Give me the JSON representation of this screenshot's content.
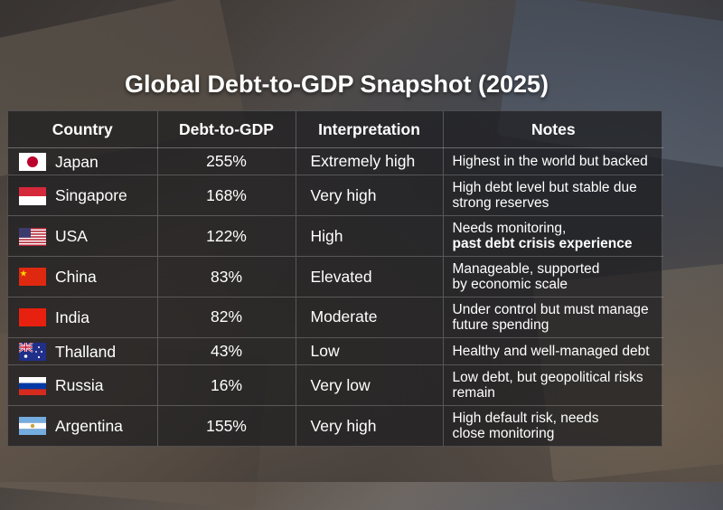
{
  "title": "Global Debt-to-GDP Snapshot (2025)",
  "table": {
    "headers": [
      "Country",
      "Debt-to-GDP",
      "Interpretation",
      "Notes"
    ],
    "rows": [
      {
        "country": "Japan",
        "flag": "japan-flag-icon",
        "debt": "255%",
        "interpretation": "Extremely high",
        "notes": [
          "Highest in the world but backed",
          ""
        ]
      },
      {
        "country": "Singapore",
        "flag": "singapore-flag-icon",
        "debt": "168%",
        "interpretation": "Very high",
        "notes": [
          "High debt level but stable due",
          "strong reserves"
        ]
      },
      {
        "country": "USA",
        "flag": "usa-flag-icon",
        "debt": "122%",
        "interpretation": "High",
        "notes": [
          "Needs monitoring,",
          "past debt crisis experience"
        ]
      },
      {
        "country": "China",
        "flag": "china-flag-icon",
        "debt": "83%",
        "interpretation": "Elevated",
        "notes": [
          "Manageable, supported",
          "by economic scale"
        ]
      },
      {
        "country": "India",
        "flag": "india-flag-icon",
        "debt": "82%",
        "interpretation": "Moderate",
        "notes": [
          "Under control but must manage",
          "future spending"
        ]
      },
      {
        "country": "Thalland",
        "flag": "australia-flag-icon",
        "debt": "43%",
        "interpretation": "Low",
        "notes": [
          "Healthy and well-managed debt",
          ""
        ]
      },
      {
        "country": "Russia",
        "flag": "russia-flag-icon",
        "debt": "16%",
        "interpretation": "Very low",
        "notes": [
          "Low debt, but geopolitical risks",
          "remain"
        ]
      },
      {
        "country": "Argentina",
        "flag": "argentina-flag-icon",
        "debt": "155%",
        "interpretation": "Very high",
        "notes": [
          "High default risk, needs",
          "close monitoring"
        ]
      }
    ]
  },
  "colors": {
    "japan_red": "#bc002d",
    "singapore_red": "#d6283b",
    "usa_blue": "#3c3b6e",
    "usa_red": "#b22234",
    "china_red": "#de2910",
    "china_yellow": "#ffde00",
    "india_red": "#e8200f",
    "australia_blue": "#1f2f8a",
    "russia_blue": "#0039a6",
    "russia_red": "#d52b1e",
    "argentina_blue": "#74acdf",
    "argentina_sun": "#c9a23a"
  }
}
